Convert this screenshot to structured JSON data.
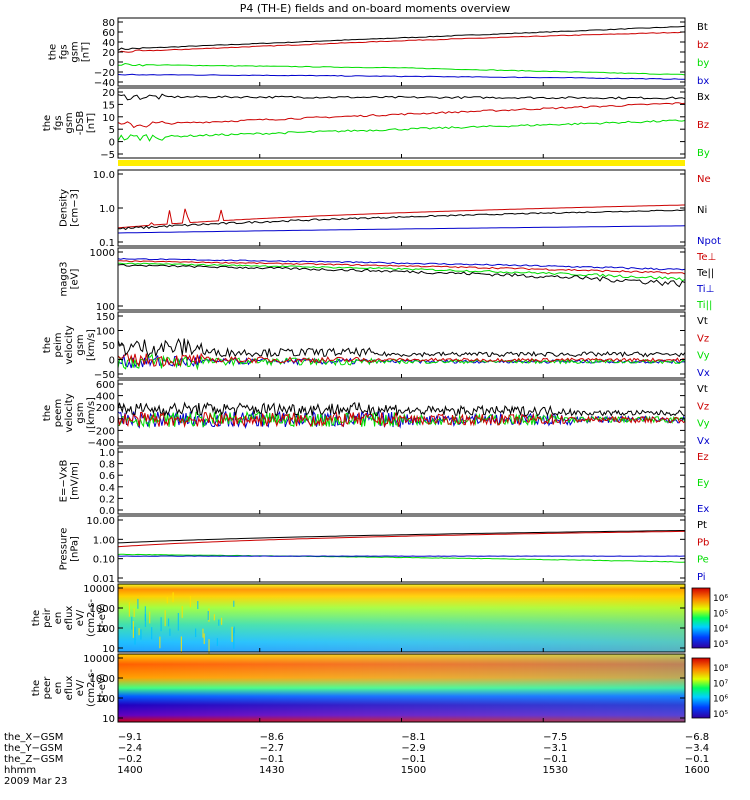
{
  "title": "P4 (TH-E) fields and on-board moments overview",
  "date": "2009 Mar 23",
  "colors": {
    "black": "#000000",
    "red": "#cc0000",
    "green": "#00dd00",
    "blue": "#0000cc",
    "yellow": "#ffee00"
  },
  "panels": [
    {
      "ylabel": [
        "the",
        "fgs",
        "gsm",
        "[nT]"
      ],
      "ticks": [
        "80",
        "60",
        "40",
        "20",
        "0",
        "−20",
        "−40"
      ],
      "legend": [
        "Bt",
        "bz",
        "by",
        "bx"
      ],
      "legend_colors": [
        "black",
        "red",
        "green",
        "blue"
      ],
      "ylim": [
        -40,
        80
      ]
    },
    {
      "ylabel": [
        "the",
        "fgs",
        "gsm",
        "-DSB",
        "[nT]"
      ],
      "ticks": [
        "20",
        "15",
        "10",
        "5",
        "0",
        "−5"
      ],
      "legend": [
        "Bx",
        "Bz",
        "By"
      ],
      "legend_colors": [
        "black",
        "red",
        "green"
      ],
      "ylim": [
        -8,
        20
      ]
    },
    {
      "ylabel": [
        "Density",
        "[cm−3]"
      ],
      "ticks": [
        "10.0",
        "1.0",
        "0.1"
      ],
      "legend": [
        "Ne",
        "Ni",
        "Npot"
      ],
      "legend_colors": [
        "red",
        "black",
        "blue"
      ],
      "ylim": [
        0.1,
        10
      ],
      "log": true
    },
    {
      "ylabel": [
        "magσ3",
        "[eV]"
      ],
      "ticks": [
        "1000",
        "100"
      ],
      "legend": [
        "Te⊥",
        "Te||",
        "Ti⊥",
        "Ti||"
      ],
      "legend_colors": [
        "red",
        "black",
        "blue",
        "green"
      ],
      "ylim": [
        100,
        10000
      ],
      "log": true
    },
    {
      "ylabel": [
        "the",
        "peim",
        "velocity",
        "gsm",
        "[km/s]"
      ],
      "ticks": [
        "150",
        "100",
        "50",
        "0",
        "−50"
      ],
      "legend": [
        "Vt",
        "Vz",
        "Vy",
        "Vx"
      ],
      "legend_colors": [
        "black",
        "red",
        "green",
        "blue"
      ],
      "ylim": [
        -50,
        150
      ]
    },
    {
      "ylabel": [
        "the",
        "peem",
        "velocity",
        "gsm",
        "[km/s]"
      ],
      "ticks": [
        "600",
        "400",
        "200",
        "0",
        "−200",
        "−400"
      ],
      "legend": [
        "Vt",
        "Vz",
        "Vy",
        "Vx"
      ],
      "legend_colors": [
        "black",
        "red",
        "green",
        "blue"
      ],
      "ylim": [
        -400,
        600
      ]
    },
    {
      "ylabel": [
        "E=−VxB",
        "[mV/m]"
      ],
      "ticks": [
        "1.0",
        "0.8",
        "0.6",
        "0.4",
        "0.2",
        "0.0"
      ],
      "legend": [
        "Ez",
        "Ey",
        "Ex"
      ],
      "legend_colors": [
        "red",
        "green",
        "blue"
      ],
      "ylim": [
        0,
        1
      ]
    },
    {
      "ylabel": [
        "Pressure",
        "[nPa]"
      ],
      "ticks": [
        "10.00",
        "1.00",
        "0.10",
        "0.01"
      ],
      "legend": [
        "Pt",
        "Pb",
        "Pe",
        "Pi"
      ],
      "legend_colors": [
        "black",
        "red",
        "green",
        "blue"
      ],
      "ylim": [
        0.01,
        10
      ],
      "log": true
    },
    {
      "ylabel": [
        "the",
        "peir",
        "en",
        "eflux",
        "eV/",
        "(cm2-s-",
        "sr-eV)"
      ],
      "ticks": [
        "10000",
        "1000",
        "100",
        "10"
      ],
      "colorbar": [
        "10⁶",
        "10⁵",
        "10⁴",
        "10³"
      ]
    },
    {
      "ylabel": [
        "the",
        "peer",
        "en",
        "eflux",
        "eV/",
        "(cm2-s-",
        "sr-eV)"
      ],
      "ticks": [
        "10000",
        "1000",
        "100",
        "10"
      ],
      "colorbar": [
        "10⁸",
        "10⁷",
        "10⁶",
        "10⁵"
      ]
    }
  ],
  "xaxis": {
    "labels": [
      "the_X−GSM",
      "the_Y−GSM",
      "the_Z−GSM",
      "hhmm"
    ],
    "rows": [
      [
        "−9.1",
        "−8.6",
        "−8.1",
        "−7.5",
        "−6.8"
      ],
      [
        "−2.4",
        "−2.7",
        "−2.9",
        "−3.1",
        "−3.4"
      ],
      [
        "−0.2",
        "−0.1",
        "−0.1",
        "−0.1",
        "−0.1"
      ],
      [
        "1400",
        "1430",
        "1500",
        "1530",
        "1600"
      ]
    ]
  },
  "chart_data": {
    "type": "line",
    "x": [
      "1400",
      "1430",
      "1500",
      "1530",
      "1600"
    ],
    "series": [
      {
        "name": "Bt",
        "values": [
          25,
          35,
          45,
          55,
          65
        ]
      },
      {
        "name": "bz",
        "values": [
          20,
          30,
          40,
          48,
          55
        ]
      },
      {
        "name": "by",
        "values": [
          -2,
          -5,
          -8,
          -14,
          -20
        ]
      },
      {
        "name": "bx",
        "values": [
          -20,
          -21,
          -23,
          -25,
          -28
        ]
      }
    ]
  }
}
